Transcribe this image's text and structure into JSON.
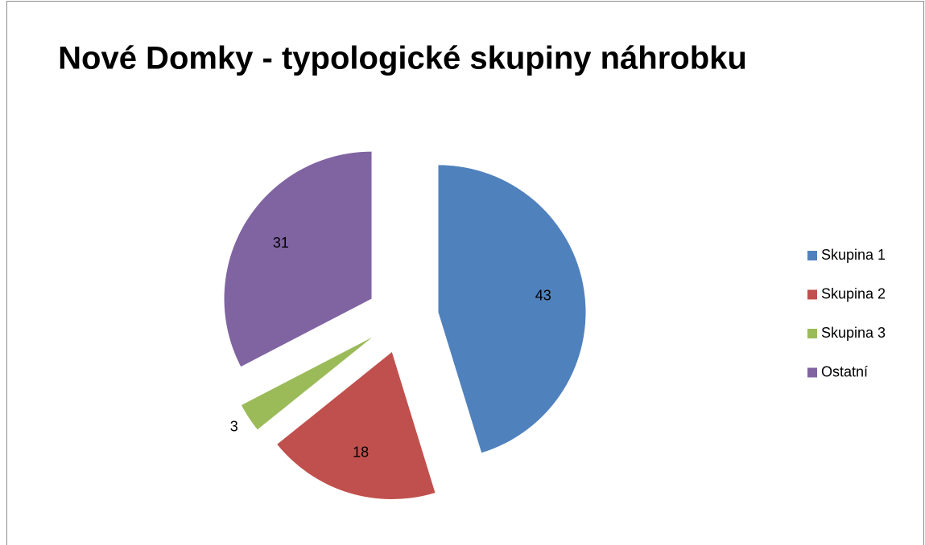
{
  "chart_data": {
    "type": "pie",
    "title": "Nové Domky - typologické skupiny náhrobku",
    "categories": [
      "Skupina 1",
      "Skupina 2",
      "Skupina 3",
      "Ostatní"
    ],
    "values": [
      43,
      18,
      3,
      31
    ],
    "colors": [
      "#4f81bd",
      "#c0504d",
      "#9bbb59",
      "#8064a2"
    ],
    "legend": "right"
  }
}
